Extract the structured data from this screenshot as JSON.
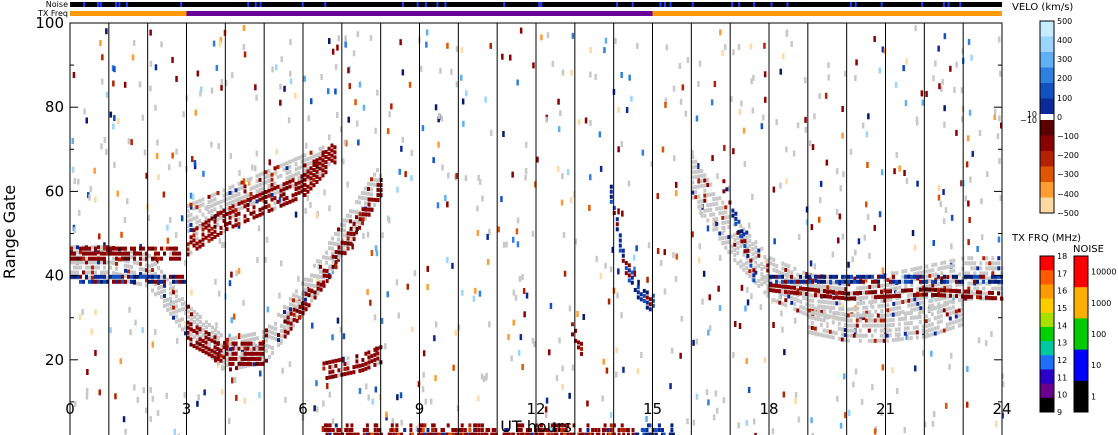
{
  "chart_data": {
    "type": "heatmap",
    "xlabel": "UT hours",
    "ylabel": "Range Gate",
    "xlim": [
      0,
      24
    ],
    "ylim": [
      0,
      100
    ],
    "x_ticks": [
      "0",
      "3",
      "6",
      "9",
      "12",
      "15",
      "18",
      "21",
      "24"
    ],
    "y_ticks": [
      "0",
      "20",
      "40",
      "60",
      "80",
      "100"
    ],
    "grid": "vertical lines every 1 hour",
    "top_bars": [
      {
        "label": "Noise",
        "color": "#000000"
      },
      {
        "label": "TX Freq",
        "segments": [
          {
            "start": 0,
            "end": 3,
            "color": "#ff9900"
          },
          {
            "start": 3,
            "end": 15,
            "color": "#660099"
          },
          {
            "start": 15,
            "end": 24,
            "color": "#ff9900"
          }
        ]
      }
    ],
    "ground_scatter_color": "#c8c8c8",
    "bands": [
      {
        "kind": "ground",
        "points": [
          [
            0,
            44
          ],
          [
            1,
            44
          ],
          [
            2,
            42
          ],
          [
            3,
            30
          ],
          [
            4,
            22
          ],
          [
            5,
            24
          ],
          [
            6,
            36
          ],
          [
            7,
            50
          ],
          [
            8,
            64
          ]
        ],
        "width": 8
      },
      {
        "kind": "ground",
        "points": [
          [
            3,
            54
          ],
          [
            4,
            58
          ],
          [
            5,
            62
          ],
          [
            6,
            66
          ],
          [
            6.5,
            68
          ]
        ],
        "width": 6
      },
      {
        "kind": "ground",
        "points": [
          [
            16,
            64
          ],
          [
            17,
            50
          ],
          [
            18,
            40
          ],
          [
            19,
            36
          ],
          [
            20,
            35
          ],
          [
            21,
            36
          ],
          [
            22,
            38
          ],
          [
            23,
            40
          ],
          [
            24,
            40
          ]
        ],
        "width": 10
      },
      {
        "kind": "ground",
        "points": [
          [
            19,
            30
          ],
          [
            20,
            28
          ],
          [
            21,
            28
          ],
          [
            22,
            29
          ],
          [
            23,
            32
          ]
        ],
        "width": 6
      },
      {
        "kind": "neg",
        "points": [
          [
            3,
            27
          ],
          [
            4,
            22
          ],
          [
            5,
            22
          ]
        ],
        "width": 5
      },
      {
        "kind": "neg",
        "points": [
          [
            3,
            48
          ],
          [
            4,
            54
          ],
          [
            5,
            58
          ],
          [
            6,
            62
          ],
          [
            6.8,
            70
          ]
        ],
        "width": 5
      },
      {
        "kind": "neg",
        "points": [
          [
            5.5,
            28
          ],
          [
            6.5,
            40
          ],
          [
            7.2,
            50
          ],
          [
            8,
            62
          ]
        ],
        "width": 4
      },
      {
        "kind": "neg",
        "points": [
          [
            6.5,
            18
          ],
          [
            7.5,
            20
          ],
          [
            8,
            22
          ]
        ],
        "width": 4
      },
      {
        "kind": "neg",
        "points": [
          [
            0,
            46
          ],
          [
            1,
            46
          ],
          [
            2,
            46
          ],
          [
            2.8,
            46
          ]
        ],
        "width": 3
      },
      {
        "kind": "pos",
        "points": [
          [
            13.9,
            60
          ],
          [
            14.2,
            45
          ],
          [
            14.6,
            36
          ],
          [
            15,
            34
          ]
        ],
        "width": 4
      },
      {
        "kind": "pos",
        "points": [
          [
            16.8,
            62
          ],
          [
            17.2,
            52
          ],
          [
            17.6,
            40
          ]
        ],
        "width": 3
      },
      {
        "kind": "pos",
        "points": [
          [
            18,
            40
          ],
          [
            20,
            40
          ],
          [
            22,
            40
          ],
          [
            24,
            40
          ]
        ],
        "width": 2
      },
      {
        "kind": "neg",
        "points": [
          [
            18,
            38
          ],
          [
            20,
            36
          ],
          [
            22,
            37
          ],
          [
            24,
            36
          ]
        ],
        "width": 2
      },
      {
        "kind": "pos",
        "points": [
          [
            0,
            40
          ],
          [
            1,
            40
          ],
          [
            2,
            40
          ],
          [
            3,
            40
          ]
        ],
        "width": 2
      },
      {
        "kind": "neg",
        "points": [
          [
            12.9,
            28
          ],
          [
            13.2,
            22
          ]
        ],
        "width": 3
      }
    ],
    "near_range_echo": {
      "x_start": 6.5,
      "x_end": 15.5,
      "gate_max": 5,
      "x_end_pos": 17
    },
    "colorbars": [
      {
        "title": "VELO (km/s)",
        "labels": [
          "500",
          "400",
          "300",
          "200",
          "100",
          "10",
          "0",
          "−10",
          "−100",
          "−200",
          "−300",
          "−400",
          "−500"
        ],
        "colors": [
          "#c6ecff",
          "#9ad4ff",
          "#5fb0f5",
          "#2e7fe0",
          "#1050c0",
          "#0a2a9a",
          "#041a6a",
          "#5a0000",
          "#8b0000",
          "#b22200",
          "#e05500",
          "#ff9d33",
          "#ffd9a0"
        ]
      },
      {
        "title": "TX FRQ (MHz)",
        "labels": [
          "18",
          "17",
          "16",
          "15",
          "14",
          "13",
          "12",
          "11",
          "10",
          "9"
        ],
        "colors": [
          "#ff0000",
          "#ff5a00",
          "#ff9a00",
          "#ffcc00",
          "#a8e000",
          "#00d000",
          "#00c8a0",
          "#1f6fff",
          "#2a00c8",
          "#6a0090",
          "#000000"
        ]
      },
      {
        "title": "NOISE",
        "labels": [
          "10000",
          "1000",
          "100",
          "10",
          "1"
        ],
        "colors": [
          "#ff0000",
          "#ffb000",
          "#00cc00",
          "#0000ff",
          "#000000"
        ]
      }
    ]
  },
  "colors": {
    "pos": [
      "#041a6a",
      "#0a2a9a",
      "#1050c0",
      "#2e7fe0",
      "#5fb0f5",
      "#9ad4ff"
    ],
    "neg": [
      "#8b0000",
      "#8b0000",
      "#b22200",
      "#e05500",
      "#ff9d33",
      "#ffd9a0"
    ]
  }
}
